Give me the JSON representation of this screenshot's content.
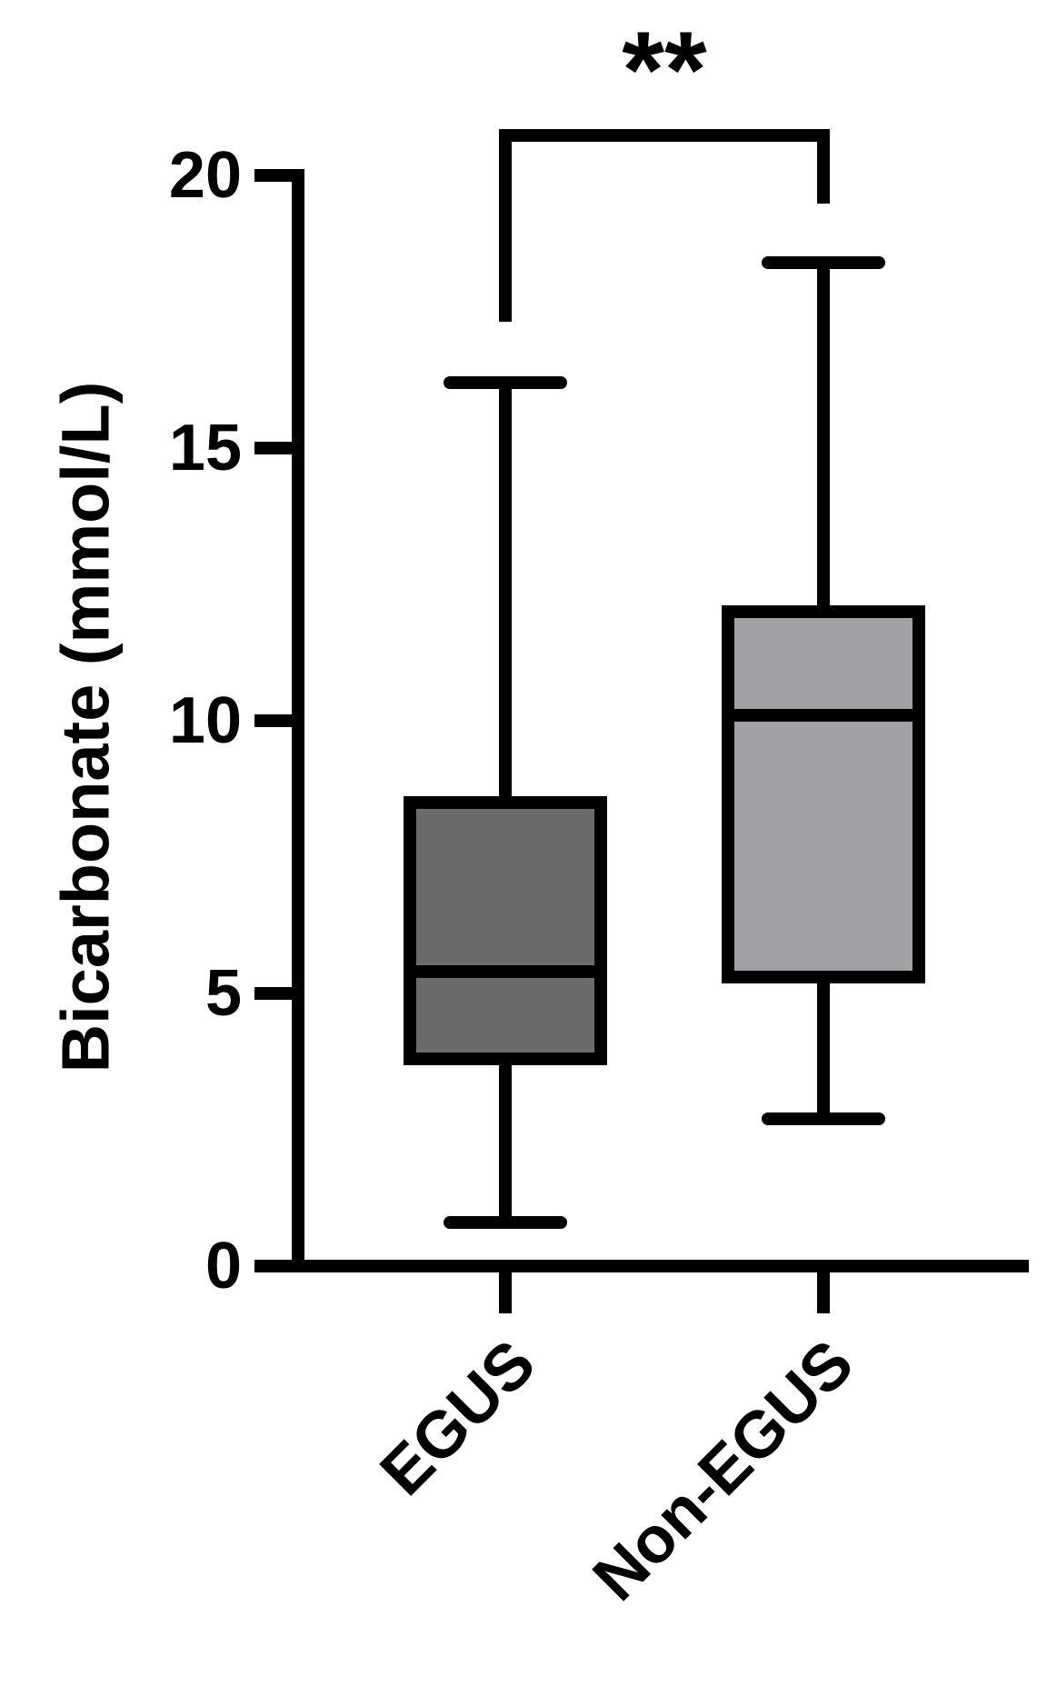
{
  "chart_data": {
    "type": "box",
    "y_label": "Bicarbonate (mmol/L)",
    "categories": [
      "EGUS",
      "Non-EGUS"
    ],
    "boxes": [
      {
        "min": 0.8,
        "q1": 3.8,
        "median": 5.4,
        "q3": 8.5,
        "max": 16.2,
        "color": "#6b6b6b"
      },
      {
        "min": 2.7,
        "q1": 5.3,
        "median": 10.1,
        "q3": 12.0,
        "max": 18.4,
        "color": "#a2a2a6"
      }
    ],
    "annotations": [
      {
        "text": "**",
        "between": [
          0,
          1
        ]
      }
    ],
    "ylim": [
      0,
      20
    ],
    "yticks": [
      0,
      5,
      10,
      15,
      20
    ],
    "grid": false
  }
}
